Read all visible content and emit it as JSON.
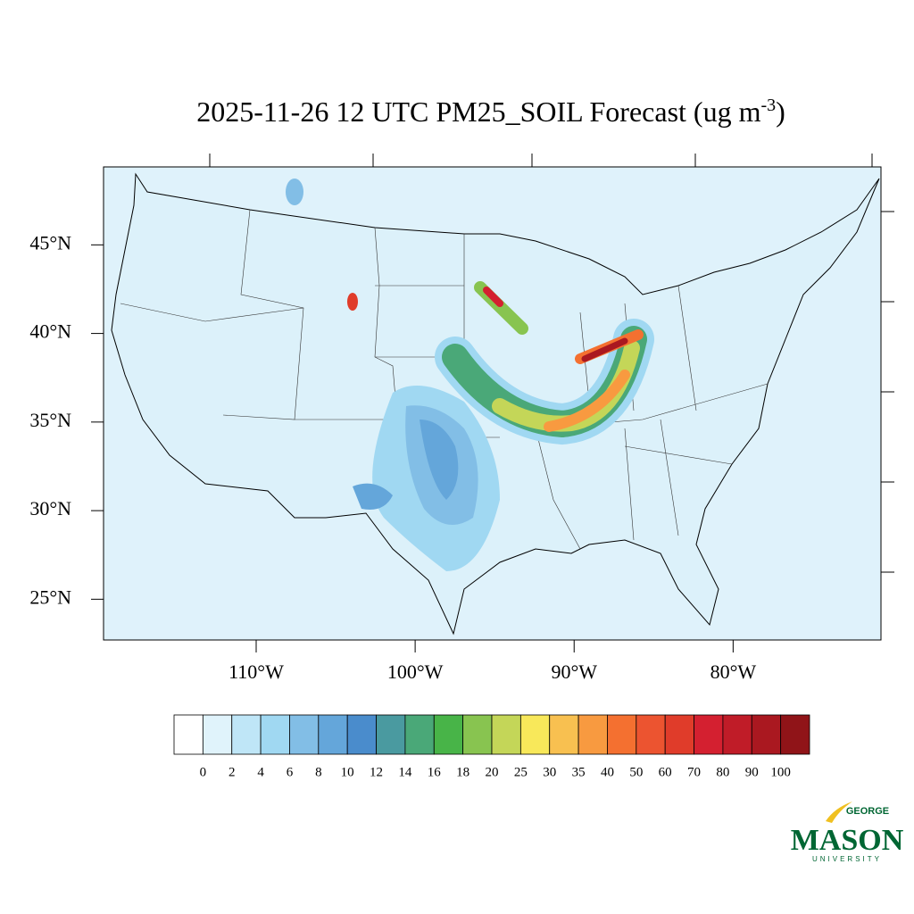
{
  "chart_data": {
    "type": "contour-map",
    "title": {
      "text": "2025-11-26 12 UTC PM25_SOIL Forecast (ug m",
      "superscript": "-3",
      "close": ")"
    },
    "xlim": [
      -119.6,
      -70.7
    ],
    "ylim": [
      22.7,
      49.4
    ],
    "xticks": [
      {
        "value": -110,
        "label": "110°W"
      },
      {
        "value": -100,
        "label": "100°W"
      },
      {
        "value": -90,
        "label": "90°W"
      },
      {
        "value": -80,
        "label": "80°W"
      }
    ],
    "yticks": [
      {
        "value": 45,
        "label": "45°N"
      },
      {
        "value": 40,
        "label": "40°N"
      },
      {
        "value": 35,
        "label": "35°N"
      },
      {
        "value": 30,
        "label": "30°N"
      },
      {
        "value": 25,
        "label": "25°N"
      }
    ],
    "colorbar": {
      "levels": [
        0,
        2,
        4,
        6,
        8,
        10,
        12,
        14,
        16,
        18,
        20,
        25,
        30,
        35,
        40,
        50,
        60,
        70,
        80,
        90,
        100
      ],
      "colors": [
        "#ffffff",
        "#e0f3fb",
        "#bfe6f7",
        "#a0d8f2",
        "#82bee6",
        "#64a6da",
        "#4a8ccc",
        "#4a9aa0",
        "#4aa878",
        "#48b448",
        "#88c450",
        "#c4d658",
        "#f8e85a",
        "#f8c050",
        "#f89a40",
        "#f47030",
        "#ec5430",
        "#e03c2a",
        "#d42030",
        "#c01c28",
        "#aa1820",
        "#901418"
      ]
    },
    "logo": {
      "top": "GEORGE",
      "main": "MASON",
      "bottom": "UNIVERSITY"
    }
  }
}
